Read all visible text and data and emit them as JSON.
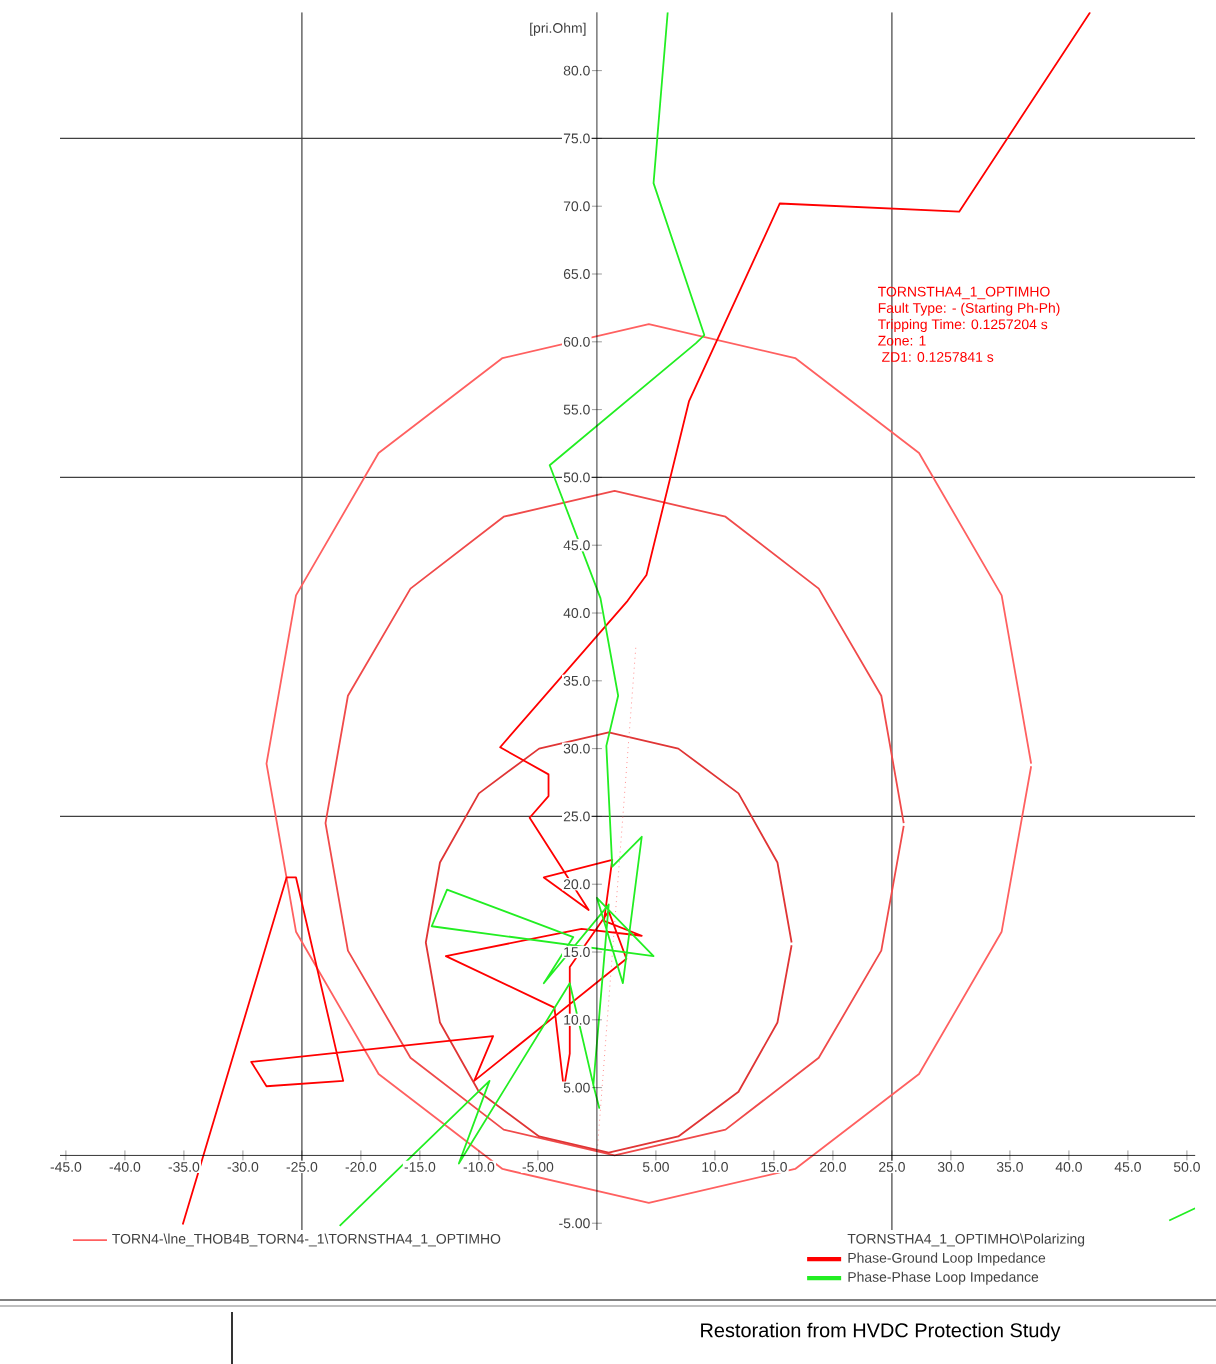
{
  "chart_data": {
    "type": "line",
    "title": "Restoration from HVDC Protection Study",
    "ylabel": "[pri.Ohm]",
    "legend_title": "TORNSTHA4_1_OPTIMHO\\Polarizing",
    "annotations": [
      "TORNSTHA4_1_OPTIMHO",
      "Fault Type: - (Starting Ph-Ph)",
      "Tripping Time: 0.1257204 s",
      "Zone: 1",
      "  ZD1: 0.1257841 s"
    ],
    "xlim": [
      -45.5,
      50.7
    ],
    "ylim": [
      -5.5,
      84.3
    ],
    "xticks": [
      {
        "value": -45,
        "label": "-45.0"
      },
      {
        "value": -40,
        "label": "-40.0"
      },
      {
        "value": -35,
        "label": "-35.0"
      },
      {
        "value": -30,
        "label": "-30.0"
      },
      {
        "value": -25,
        "label": "-25.0"
      },
      {
        "value": -20,
        "label": "-20.0"
      },
      {
        "value": -15,
        "label": "-15.0"
      },
      {
        "value": -10,
        "label": "-10.0"
      },
      {
        "value": -5,
        "label": "-5.00"
      },
      {
        "value": 5,
        "label": "5.00"
      },
      {
        "value": 10,
        "label": "10.0"
      },
      {
        "value": 15,
        "label": "15.0"
      },
      {
        "value": 20,
        "label": "20.0"
      },
      {
        "value": 25,
        "label": "25.0"
      },
      {
        "value": 30,
        "label": "30.0"
      },
      {
        "value": 35,
        "label": "35.0"
      },
      {
        "value": 40,
        "label": "40.0"
      },
      {
        "value": 45,
        "label": "45.0"
      },
      {
        "value": 50,
        "label": "50.0"
      }
    ],
    "yticks": [
      {
        "value": -5,
        "label": "-5.00"
      },
      {
        "value": 5,
        "label": "5.00"
      },
      {
        "value": 10,
        "label": "10.0"
      },
      {
        "value": 15,
        "label": "15.0"
      },
      {
        "value": 20,
        "label": "20.0"
      },
      {
        "value": 25,
        "label": "25.0"
      },
      {
        "value": 30,
        "label": "30.0"
      },
      {
        "value": 35,
        "label": "35.0"
      },
      {
        "value": 40,
        "label": "40.0"
      },
      {
        "value": 45,
        "label": "45.0"
      },
      {
        "value": 50,
        "label": "50.0"
      },
      {
        "value": 55,
        "label": "55.0"
      },
      {
        "value": 60,
        "label": "60.0"
      },
      {
        "value": 65,
        "label": "65.0"
      },
      {
        "value": 70,
        "label": "70.0"
      },
      {
        "value": 75,
        "label": "75.0"
      },
      {
        "value": 80,
        "label": "80.0"
      }
    ],
    "ref_lines": [
      {
        "axis": "x",
        "value": -25,
        "color": "#404040"
      },
      {
        "axis": "x",
        "value": 25,
        "color": "#404040"
      },
      {
        "axis": "y",
        "value": 25,
        "color": "#404040"
      },
      {
        "axis": "y",
        "value": 50,
        "color": "#404040"
      },
      {
        "axis": "y",
        "value": 75,
        "color": "#404040"
      }
    ],
    "legend": "bottom",
    "series": [
      {
        "name": "TORN4-\\lne_THOB4B_TORN4-_1\\TORNSTHA4_1_OPTIMHO",
        "color": "#ff6060",
        "x": [
          36.8,
          34.3,
          27.3,
          16.8,
          4.4,
          -8.0,
          -18.5,
          -25.5,
          -28.0,
          -25.5,
          -18.5,
          -8.0,
          4.4,
          16.8,
          27.3,
          34.3,
          36.8
        ],
        "values": [
          28.9,
          41.3,
          51.8,
          58.8,
          61.3,
          58.8,
          51.8,
          41.3,
          28.9,
          16.5,
          6.0,
          -1.0,
          -3.5,
          -1.0,
          6.0,
          16.5,
          28.7
        ]
      },
      {
        "color": "#f04a4a",
        "x": [
          26.0,
          24.1,
          18.8,
          10.9,
          1.5,
          -7.9,
          -15.8,
          -21.1,
          -23.0,
          -21.1,
          -15.8,
          -7.9,
          1.5,
          10.9,
          18.8,
          24.1,
          26.0
        ],
        "values": [
          24.5,
          33.9,
          41.8,
          47.1,
          49.0,
          47.1,
          41.8,
          33.9,
          24.5,
          15.1,
          7.2,
          1.9,
          0,
          1.9,
          7.2,
          15.1,
          24.3
        ]
      },
      {
        "color": "#e03535",
        "x": [
          16.5,
          15.3,
          12.0,
          6.9,
          1.0,
          -4.9,
          -10.0,
          -13.3,
          -14.5,
          -13.3,
          -10.0,
          -4.9,
          1.0,
          6.9,
          12.0,
          15.3,
          16.5
        ],
        "values": [
          15.7,
          21.6,
          26.7,
          30.0,
          31.2,
          30.0,
          26.7,
          21.6,
          15.7,
          9.8,
          4.7,
          1.4,
          0.2,
          1.4,
          4.7,
          9.8,
          15.5
        ]
      },
      {
        "color": "#ff9090",
        "line_style": "dotted",
        "x": [
          0,
          3.3
        ],
        "values": [
          0,
          37.5
        ]
      },
      {
        "name": "Phase-Ground Loop Impedance",
        "color": "#ff0000",
        "x": [
          41.8,
          30.7,
          15.5,
          7.8,
          4.2,
          2.6,
          -8.2,
          -4.1,
          -4.1,
          -5.7,
          -0.7,
          -4.5,
          1.3,
          0.6,
          3.8,
          -1.3,
          -12.8,
          -3.6,
          -2.8,
          -2.3,
          -2.3,
          1.0,
          2.5,
          -10.4,
          -8.8,
          -29.3,
          -28.0,
          -21.5,
          -25.5,
          -26.3,
          -35.1
        ],
        "values": [
          84.3,
          69.6,
          70.2,
          55.6,
          42.8,
          40.9,
          30.1,
          28.1,
          26.5,
          24.9,
          18.1,
          20.5,
          21.8,
          17.3,
          16.2,
          16.7,
          14.7,
          10.9,
          4.9,
          7.5,
          13.9,
          18.0,
          14.5,
          5.5,
          8.8,
          6.9,
          5.1,
          5.5,
          20.5,
          20.5,
          -5.1
        ]
      },
      {
        "name": "Phase-Phase Loop Impedance",
        "color": "#22ee22",
        "x": [
          6.0,
          4.8,
          9.1,
          8.4,
          -4.0,
          0.3,
          1.8,
          0.8,
          1.3,
          3.8,
          2.2,
          0.0,
          4.8,
          -14.0,
          -12.7,
          -2.0,
          -4.5,
          1.0,
          -0.3,
          0.2,
          -0.3,
          -2.3,
          -11.7,
          -9.1,
          -21.8,
          null,
          48.5,
          50.7
        ],
        "values": [
          84.3,
          71.7,
          60.5,
          59.9,
          50.9,
          41.1,
          33.9,
          30.2,
          21.3,
          23.5,
          12.7,
          19.0,
          14.7,
          16.9,
          19.6,
          16.1,
          12.7,
          18.5,
          5.2,
          3.5,
          5.2,
          12.7,
          -0.6,
          5.5,
          -5.2,
          null,
          -4.8,
          -3.9
        ]
      }
    ]
  }
}
